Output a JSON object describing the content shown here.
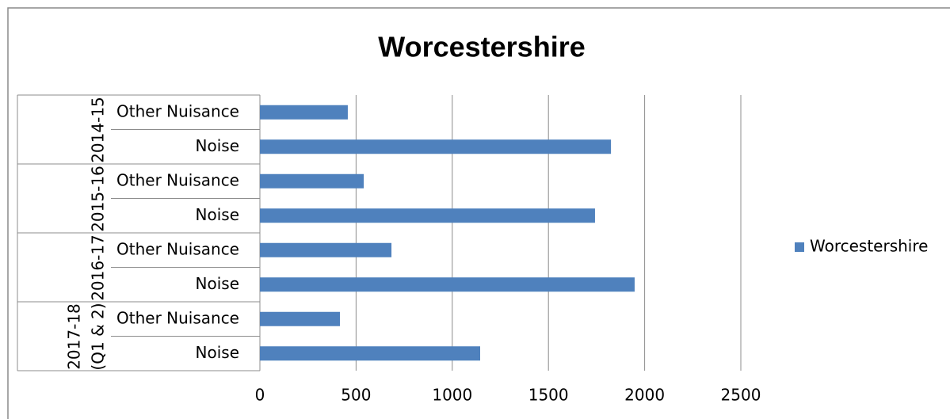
{
  "chart_data": {
    "type": "bar",
    "orientation": "horizontal",
    "title": "Worcestershire",
    "categories": [
      "Other Nuisance",
      "Noise",
      "Other Nuisance",
      "Noise",
      "Other Nuisance",
      "Noise",
      "Other Nuisance",
      "Noise"
    ],
    "category_groups": [
      "2014-15",
      "2015-16",
      "2016-17",
      "2017-18 (Q1 & 2)"
    ],
    "series": [
      {
        "name": "Worcestershire",
        "color": "#4f81bd",
        "values": [
          457,
          1825,
          540,
          1742,
          684,
          1948,
          416,
          1145
        ]
      }
    ],
    "xlim": [
      0,
      2500
    ],
    "xticks": [
      0,
      500,
      1000,
      1500,
      2000,
      2500
    ],
    "grid": true,
    "legend": "right"
  }
}
